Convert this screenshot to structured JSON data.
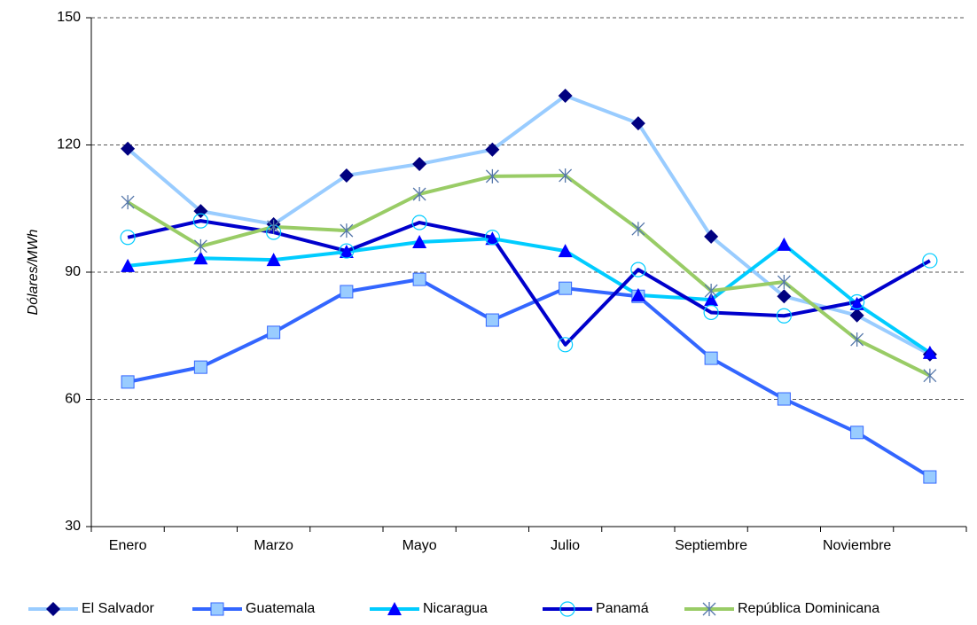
{
  "chart_data": {
    "type": "line",
    "y_label": "Dólares/MWh",
    "categories": [
      "Enero",
      null,
      "Marzo",
      null,
      "Mayo",
      null,
      "Julio",
      null,
      "Septiembre",
      null,
      "Noviembre",
      null
    ],
    "ylim": [
      30,
      150
    ],
    "yticks": [
      30,
      60,
      90,
      120,
      150
    ],
    "grid": true,
    "legend": "bottom",
    "series": [
      {
        "name": "El Salvador",
        "color": "#99ccff",
        "marker": "diamond",
        "marker_color": "#000080",
        "values": [
          119.1,
          104.4,
          101.3,
          112.8,
          115.5,
          118.9,
          131.6,
          125.1,
          98.4,
          84.3,
          79.8,
          70.6
        ]
      },
      {
        "name": "Guatemala",
        "color": "#3366ff",
        "marker": "square",
        "marker_color": "#99ccff",
        "values": [
          64.1,
          67.6,
          75.8,
          85.4,
          88.3,
          78.7,
          86.2,
          84.3,
          69.7,
          60.1,
          52.2,
          41.7
        ]
      },
      {
        "name": "Nicaragua",
        "color": "#00ccff",
        "marker": "triangle",
        "marker_color": "#0000ff",
        "values": [
          91.5,
          93.3,
          92.9,
          94.8,
          97.1,
          97.9,
          95.0,
          84.6,
          83.5,
          96.5,
          82.5,
          71.0
        ]
      },
      {
        "name": "Panamá",
        "color": "#0000cc",
        "marker": "circle",
        "marker_color": "#00ccff",
        "values": [
          98.2,
          102.1,
          99.4,
          95.0,
          101.7,
          98.2,
          72.9,
          90.6,
          80.5,
          79.7,
          83.0,
          92.7
        ]
      },
      {
        "name": "República Dominicana",
        "color": "#99cc66",
        "marker": "asterisk",
        "marker_color": "#5577aa",
        "values": [
          106.5,
          96.1,
          100.7,
          99.8,
          108.4,
          112.6,
          112.8,
          100.2,
          85.6,
          87.7,
          74.1,
          65.6
        ]
      }
    ]
  }
}
